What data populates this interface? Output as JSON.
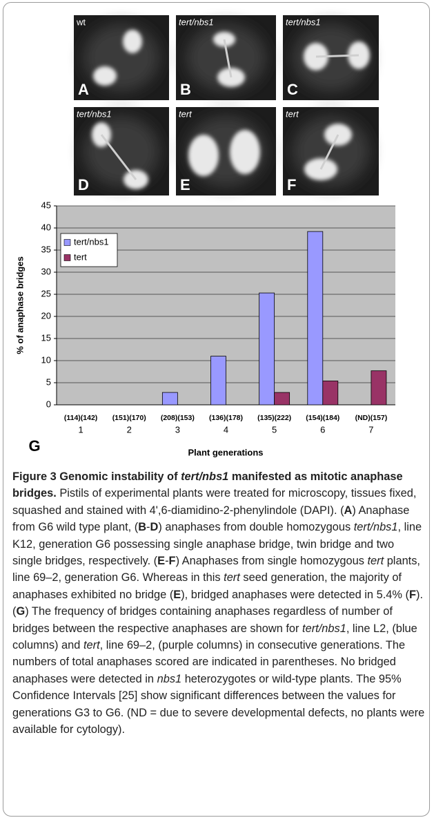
{
  "panels": [
    {
      "label": "wt",
      "letter": "A"
    },
    {
      "label": "tert/nbs1",
      "letter": "B"
    },
    {
      "label": "tert/nbs1",
      "letter": "C"
    },
    {
      "label": "tert/nbs1",
      "letter": "D"
    },
    {
      "label": "tert",
      "letter": "E"
    },
    {
      "label": "tert",
      "letter": "F"
    }
  ],
  "chart_data": {
    "type": "bar",
    "panel_letter": "G",
    "x_label": "Plant generations",
    "y_label": "% of anaphase bridges",
    "categories": [
      "1",
      "2",
      "3",
      "4",
      "5",
      "6",
      "7"
    ],
    "category_counts": [
      "(114)(142)",
      "(151)(170)",
      "(208)(153)",
      "(136)(178)",
      "(135)(222)",
      "(154)(184)",
      "(ND)(157)"
    ],
    "series": [
      {
        "name": "tert/nbs1",
        "color": "#9999ff",
        "values": [
          0,
          0,
          2.8,
          11,
          25.3,
          39.2,
          null
        ]
      },
      {
        "name": "tert",
        "color": "#993366",
        "values": [
          0,
          0,
          0,
          0,
          2.8,
          5.4,
          7.7
        ]
      }
    ],
    "ylim": [
      0,
      45
    ],
    "yticks": [
      0,
      5,
      10,
      15,
      20,
      25,
      30,
      35,
      40,
      45
    ],
    "grid": true,
    "legend": "upper left",
    "background": "#c0c0c0"
  },
  "caption": [
    "Figure 3 Genomic instability of ",
    "tert/nbs1",
    " manifested as mitotic anaphase bridges.",
    " Pistils of experimental plants were treated for microscopy, tissues fixed, squashed and stained with 4',6-diamidino-2-phenylindole (DAPI). (",
    "A",
    ") Anaphase from G6 wild type plant, (",
    "B",
    "-",
    "D",
    ") anaphases from double homozygous ",
    "tert/nbs1",
    ", line K12, generation G6 possessing single anaphase bridge, twin bridge and two single bridges, respectively. (",
    "E",
    "-",
    "F",
    ") Anaphases from single homozygous ",
    "tert",
    " plants, line 69–2, generation G6. Whereas in this ",
    "tert",
    " seed generation, the majority of anaphases exhibited no bridge (",
    "E",
    "), bridged anaphases were detected in 5.4% (",
    "F",
    "). (",
    "G",
    ") The frequency of bridges containing anaphases regardless of number of bridges between the respective anaphases are shown for ",
    "tert/nbs1",
    ", line L2, (blue columns) and ",
    "tert",
    ", line 69–2, (purple columns) in consecutive generations. The numbers of total anaphases scored are indicated in parentheses. No bridged anaphases were detected in ",
    "nbs1",
    " heterozygotes or wild-type plants. The 95% Confidence Intervals [25] show significant differences between the values for generations G3 to G6. (ND = due to severe developmental defects, no plants were available for cytology)."
  ]
}
